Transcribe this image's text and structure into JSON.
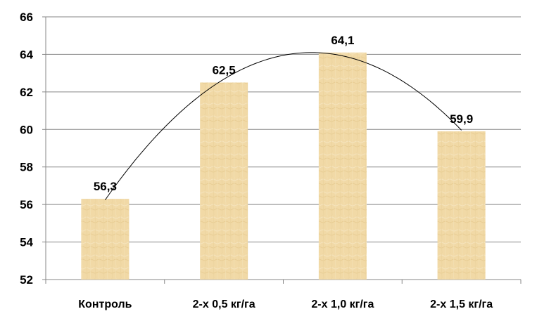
{
  "chart_data": {
    "type": "bar",
    "title": "",
    "xlabel": "",
    "ylabel": "",
    "categories": [
      "Контроль",
      "2-х 0,5 кг/га",
      "2-х 1,0 кг/га",
      "2-х 1,5 кг/га"
    ],
    "values": [
      56.3,
      62.5,
      64.1,
      59.9
    ],
    "value_labels": [
      "56,3",
      "62,5",
      "64,1",
      "59,9"
    ],
    "ylim": [
      52,
      66
    ],
    "y_ticks": [
      52,
      54,
      56,
      58,
      60,
      62,
      64,
      66
    ],
    "grid": true,
    "legend": "none",
    "trendline": {
      "type": "polynomial",
      "order": 2
    },
    "colors": {
      "bar_fill": "#F1D9A7",
      "bar_texture_light": "#F7E8C6",
      "bar_texture_dark": "#E3C587",
      "grid": "#878787",
      "axis": "#878787",
      "trendline": "#000000"
    }
  }
}
